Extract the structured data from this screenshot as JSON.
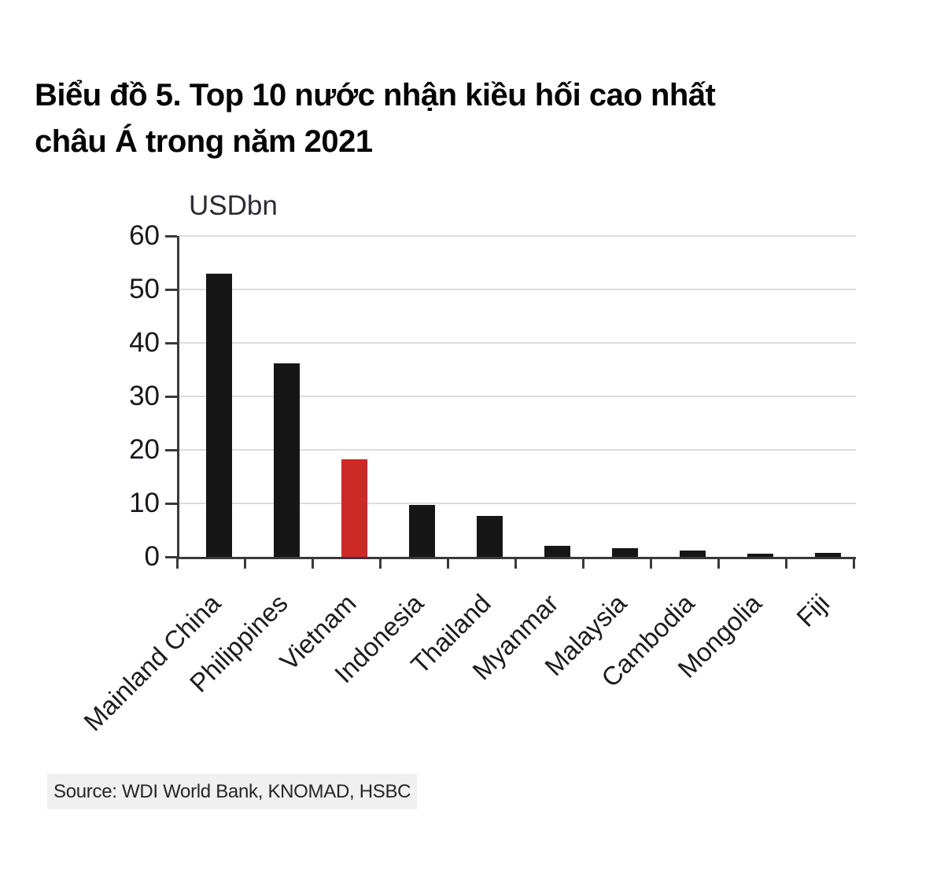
{
  "title": {
    "line1": "Biểu đồ 5. Top 10 nước nhận kiều hối cao nhất",
    "line2": "châu Á trong năm 2021"
  },
  "chart_data": {
    "type": "bar",
    "title": "Biểu đồ 5. Top 10 nước nhận kiều hối cao nhất châu Á trong năm 2021",
    "unit_label": "USDbn",
    "categories": [
      "Mainland China",
      "Philippines",
      "Vietnam",
      "Indonesia",
      "Thailand",
      "Myanmar",
      "Malaysia",
      "Cambodia",
      "Mongolia",
      "Fiji"
    ],
    "values": [
      53,
      36.2,
      18.3,
      9.7,
      7.7,
      2.0,
      1.6,
      1.2,
      0.6,
      0.7
    ],
    "highlight_index": 2,
    "highlight_category": "Vietnam",
    "bar_color": "#161616",
    "highlight_color": "#cc2a26",
    "ylabel": "USDbn",
    "ylim": [
      0,
      60
    ],
    "yticks": [
      0,
      10,
      20,
      30,
      40,
      50,
      60
    ],
    "grid": true,
    "legend": "none",
    "xlabel_rotation_deg": 45
  },
  "source": {
    "text": "Source: WDI World Bank, KNOMAD, HSBC"
  },
  "colors": {
    "background": "#ffffff",
    "axis": "#3a3a3a",
    "gridline": "#dcdcdc",
    "tick_text": "#17171c",
    "source_background": "#f0f0f0"
  }
}
